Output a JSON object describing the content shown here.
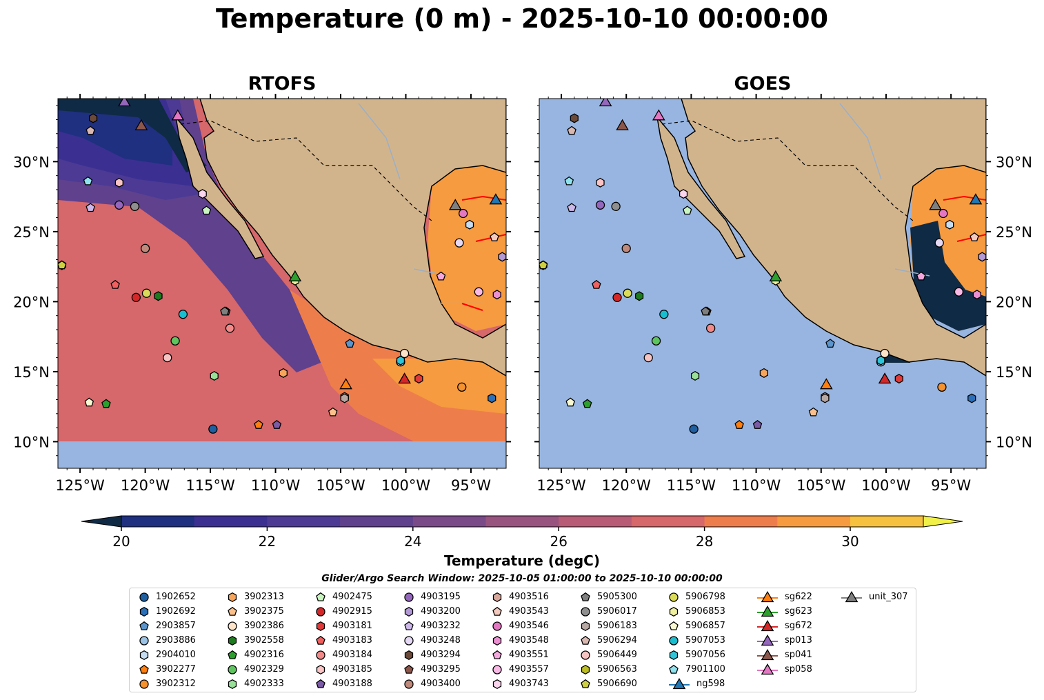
{
  "title": "Temperature (0 m) - 2025-10-10 00:00:00",
  "panels": [
    {
      "id": "rtofs",
      "title": "RTOFS"
    },
    {
      "id": "goes",
      "title": "GOES"
    }
  ],
  "colorbar": {
    "label": "Temperature (degC)",
    "ticks": [
      "20",
      "22",
      "24",
      "26",
      "28",
      "30"
    ]
  },
  "legend": {
    "title": "Glider/Argo Search Window: 2025-10-05 01:00:00 to 2025-10-10 00:00:00"
  },
  "chart_data": {
    "type": "heatmap",
    "title": "Temperature (0 m) - 2025-10-10 00:00:00",
    "panels": [
      "RTOFS",
      "GOES"
    ],
    "variable": "Temperature",
    "units": "degC",
    "color_range": [
      20,
      31
    ],
    "color_levels": [
      20,
      21,
      22,
      23,
      24,
      25,
      26,
      27,
      28,
      29,
      30,
      31
    ],
    "extend": "both",
    "colors": [
      "#0f2a44",
      "#1f3080",
      "#3b2f92",
      "#4c3a94",
      "#5f418e",
      "#7a4a88",
      "#98537f",
      "#b85b76",
      "#d6676a",
      "#ee7d4c",
      "#f69b3f",
      "#f6c13f",
      "#f0f048"
    ],
    "lon_ticks": [
      "125°W",
      "120°W",
      "115°W",
      "110°W",
      "105°W",
      "100°W",
      "95°W"
    ],
    "lon_values": [
      -125,
      -120,
      -115,
      -110,
      -105,
      -100,
      -95
    ],
    "lat_ticks": [
      "10°N",
      "15°N",
      "20°N",
      "25°N",
      "30°N"
    ],
    "lat_values": [
      10,
      15,
      20,
      25,
      30
    ],
    "xlim": [
      -126.7,
      -92.3
    ],
    "ylim": [
      8.1,
      34.5
    ],
    "land_color": "#d2b48c",
    "nodata_color": "#97b5e0",
    "series_names": [
      "1902652",
      "1902692",
      "2903857",
      "2903886",
      "2904010",
      "3902277",
      "3902312",
      "3902313",
      "3902375",
      "3902386",
      "3902558",
      "4902316",
      "4902329",
      "4902333",
      "4902475",
      "4902915",
      "4903181",
      "4903183",
      "4903184",
      "4903185",
      "4903188",
      "4903195",
      "4903200",
      "4903232",
      "4903248",
      "4903294",
      "4903295",
      "4903400",
      "4903516",
      "4903543",
      "4903546",
      "4903548",
      "4903551",
      "4903557",
      "4903743",
      "5905300",
      "5906017",
      "5906183",
      "5906294",
      "5906449",
      "5906563",
      "5906690",
      "5906798",
      "5906853",
      "5906857",
      "5907053",
      "5907056",
      "7901100",
      "ng598",
      "sg622",
      "sg623",
      "sg672",
      "sp013",
      "sp041",
      "sp058",
      "unit_307"
    ],
    "platforms": [
      {
        "name": "1902652",
        "marker": "circle",
        "color": "#1f5fa0",
        "lon": -114.8,
        "lat": 10.9
      },
      {
        "name": "1902692",
        "marker": "hexagon",
        "color": "#2a6fb8",
        "lon": -93.4,
        "lat": 13.1
      },
      {
        "name": "2903857",
        "marker": "pentagon",
        "color": "#5b95cc",
        "lon": -104.3,
        "lat": 17.0
      },
      {
        "name": "2903886",
        "marker": "circle",
        "color": "#9cc3e4",
        "lon": -100.4,
        "lat": 15.7
      },
      {
        "name": "2904010",
        "marker": "hexagon",
        "color": "#c6dcf0",
        "lon": -95.1,
        "lat": 25.5
      },
      {
        "name": "3902277",
        "marker": "pentagon",
        "color": "#ff7f0e",
        "lon": -111.3,
        "lat": 11.2
      },
      {
        "name": "3902312",
        "marker": "circle",
        "color": "#f5922e",
        "lon": -95.7,
        "lat": 13.9
      },
      {
        "name": "3902313",
        "marker": "hexagon",
        "color": "#f6a55b",
        "lon": -109.4,
        "lat": 14.9
      },
      {
        "name": "3902375",
        "marker": "pentagon",
        "color": "#fbc08c",
        "lon": -105.6,
        "lat": 12.1
      },
      {
        "name": "3902386",
        "marker": "circle",
        "color": "#fde3c8",
        "lon": -100.1,
        "lat": 16.3
      },
      {
        "name": "3902558",
        "marker": "hexagon",
        "color": "#1e7a1e",
        "lon": -119.0,
        "lat": 20.4
      },
      {
        "name": "4902316",
        "marker": "pentagon",
        "color": "#2ca02c",
        "lon": -123.0,
        "lat": 12.7
      },
      {
        "name": "4902329",
        "marker": "circle",
        "color": "#5ec45e",
        "lon": -117.7,
        "lat": 17.2
      },
      {
        "name": "4902333",
        "marker": "hexagon",
        "color": "#98e098",
        "lon": -114.7,
        "lat": 14.7
      },
      {
        "name": "4902475",
        "marker": "pentagon",
        "color": "#c8f5c0",
        "lon": -115.3,
        "lat": 26.5
      },
      {
        "name": "4902915",
        "marker": "circle",
        "color": "#d62728",
        "lon": -120.7,
        "lat": 20.3
      },
      {
        "name": "4903181",
        "marker": "hexagon",
        "color": "#e03a3a",
        "lon": -99.0,
        "lat": 14.5
      },
      {
        "name": "4903183",
        "marker": "pentagon",
        "color": "#f0605f",
        "lon": -122.3,
        "lat": 21.2
      },
      {
        "name": "4903184",
        "marker": "circle",
        "color": "#f28a8a",
        "lon": -113.5,
        "lat": 18.1
      },
      {
        "name": "4903185",
        "marker": "hexagon",
        "color": "#fbc4c4",
        "lon": -122.0,
        "lat": 28.5
      },
      {
        "name": "4903188",
        "marker": "pentagon",
        "color": "#7b5aa6",
        "lon": -109.9,
        "lat": 11.2
      },
      {
        "name": "4903195",
        "marker": "circle",
        "color": "#9467bd",
        "lon": -122.0,
        "lat": 26.9
      },
      {
        "name": "4903200",
        "marker": "hexagon",
        "color": "#b39ad6",
        "lon": -92.6,
        "lat": 23.2
      },
      {
        "name": "4903232",
        "marker": "pentagon",
        "color": "#cdb8ea",
        "lon": -124.2,
        "lat": 26.7
      },
      {
        "name": "4903248",
        "marker": "circle",
        "color": "#e6d9f5",
        "lon": -95.9,
        "lat": 24.2
      },
      {
        "name": "4903294",
        "marker": "hexagon",
        "color": "#6b4a3a",
        "lon": -124.0,
        "lat": 33.1
      },
      {
        "name": "4903295",
        "marker": "pentagon",
        "color": "#8c564b",
        "lon": -113.8,
        "lat": 19.3
      },
      {
        "name": "4903400",
        "marker": "circle",
        "color": "#bf8a7c",
        "lon": -120.0,
        "lat": 23.8
      },
      {
        "name": "4903516",
        "marker": "hexagon",
        "color": "#d8a79c",
        "lon": -104.7,
        "lat": 13.2
      },
      {
        "name": "4903543",
        "marker": "pentagon",
        "color": "#f5c9bd",
        "lon": -93.2,
        "lat": 24.6
      },
      {
        "name": "4903546",
        "marker": "circle",
        "color": "#e377c2",
        "lon": -95.6,
        "lat": 26.3
      },
      {
        "name": "4903548",
        "marker": "hexagon",
        "color": "#ec8fd2",
        "lon": -93.0,
        "lat": 20.5
      },
      {
        "name": "4903551",
        "marker": "pentagon",
        "color": "#f5a8de",
        "lon": -97.3,
        "lat": 21.8
      },
      {
        "name": "4903557",
        "marker": "circle",
        "color": "#f8b9e5",
        "lon": -94.4,
        "lat": 20.7
      },
      {
        "name": "4903743",
        "marker": "hexagon",
        "color": "#fbd5ee",
        "lon": -115.6,
        "lat": 27.7
      },
      {
        "name": "5905300",
        "marker": "pentagon",
        "color": "#7f7f7f",
        "lon": -113.9,
        "lat": 19.3
      },
      {
        "name": "5906017",
        "marker": "circle",
        "color": "#8f8f8f",
        "lon": -120.8,
        "lat": 26.8
      },
      {
        "name": "5906183",
        "marker": "hexagon",
        "color": "#b7a8a3",
        "lon": -104.7,
        "lat": 13.1
      },
      {
        "name": "5906294",
        "marker": "pentagon",
        "color": "#d9b8b2",
        "lon": -124.2,
        "lat": 32.2
      },
      {
        "name": "5906449",
        "marker": "circle",
        "color": "#f7c4c4",
        "lon": -118.3,
        "lat": 16.0
      },
      {
        "name": "5906563",
        "marker": "hexagon",
        "color": "#bcbd22",
        "lon": -126.4,
        "lat": 22.6
      },
      {
        "name": "5906690",
        "marker": "pentagon",
        "color": "#cfd040",
        "lon": -126.4,
        "lat": 22.6
      },
      {
        "name": "5906798",
        "marker": "circle",
        "color": "#dbdb5a",
        "lon": -119.9,
        "lat": 20.6
      },
      {
        "name": "5906853",
        "marker": "hexagon",
        "color": "#eef0a0",
        "lon": -108.5,
        "lat": 21.5
      },
      {
        "name": "5906857",
        "marker": "pentagon",
        "color": "#fafad2",
        "lon": -124.3,
        "lat": 12.8
      },
      {
        "name": "5907053",
        "marker": "circle",
        "color": "#17becf",
        "lon": -117.1,
        "lat": 19.1
      },
      {
        "name": "5907056",
        "marker": "hexagon",
        "color": "#30c5d8",
        "lon": -100.4,
        "lat": 15.8
      },
      {
        "name": "7901100",
        "marker": "pentagon",
        "color": "#8fe3ee",
        "lon": -124.4,
        "lat": 28.6
      },
      {
        "name": "ng598",
        "marker": "triangle",
        "color": "#1f77b4",
        "lon": -93.1,
        "lat": 27.3
      },
      {
        "name": "sg622",
        "marker": "triangle",
        "color": "#ff7f0e",
        "lon": -104.6,
        "lat": 14.1
      },
      {
        "name": "sg623",
        "marker": "triangle",
        "color": "#2ca02c",
        "lon": -108.5,
        "lat": 21.8
      },
      {
        "name": "sg672",
        "marker": "triangle",
        "color": "#d62728",
        "lon": -100.1,
        "lat": 14.5
      },
      {
        "name": "sp013",
        "marker": "triangle",
        "color": "#9467bd",
        "lon": -121.6,
        "lat": 34.3
      },
      {
        "name": "sp041",
        "marker": "triangle",
        "color": "#8c564b",
        "lon": -120.3,
        "lat": 32.6
      },
      {
        "name": "sp058",
        "marker": "triangle",
        "color": "#e377c2",
        "lon": -117.5,
        "lat": 33.3
      },
      {
        "name": "unit_307",
        "marker": "triangle",
        "color": "#7f7f7f",
        "lon": -96.2,
        "lat": 26.9
      }
    ]
  }
}
